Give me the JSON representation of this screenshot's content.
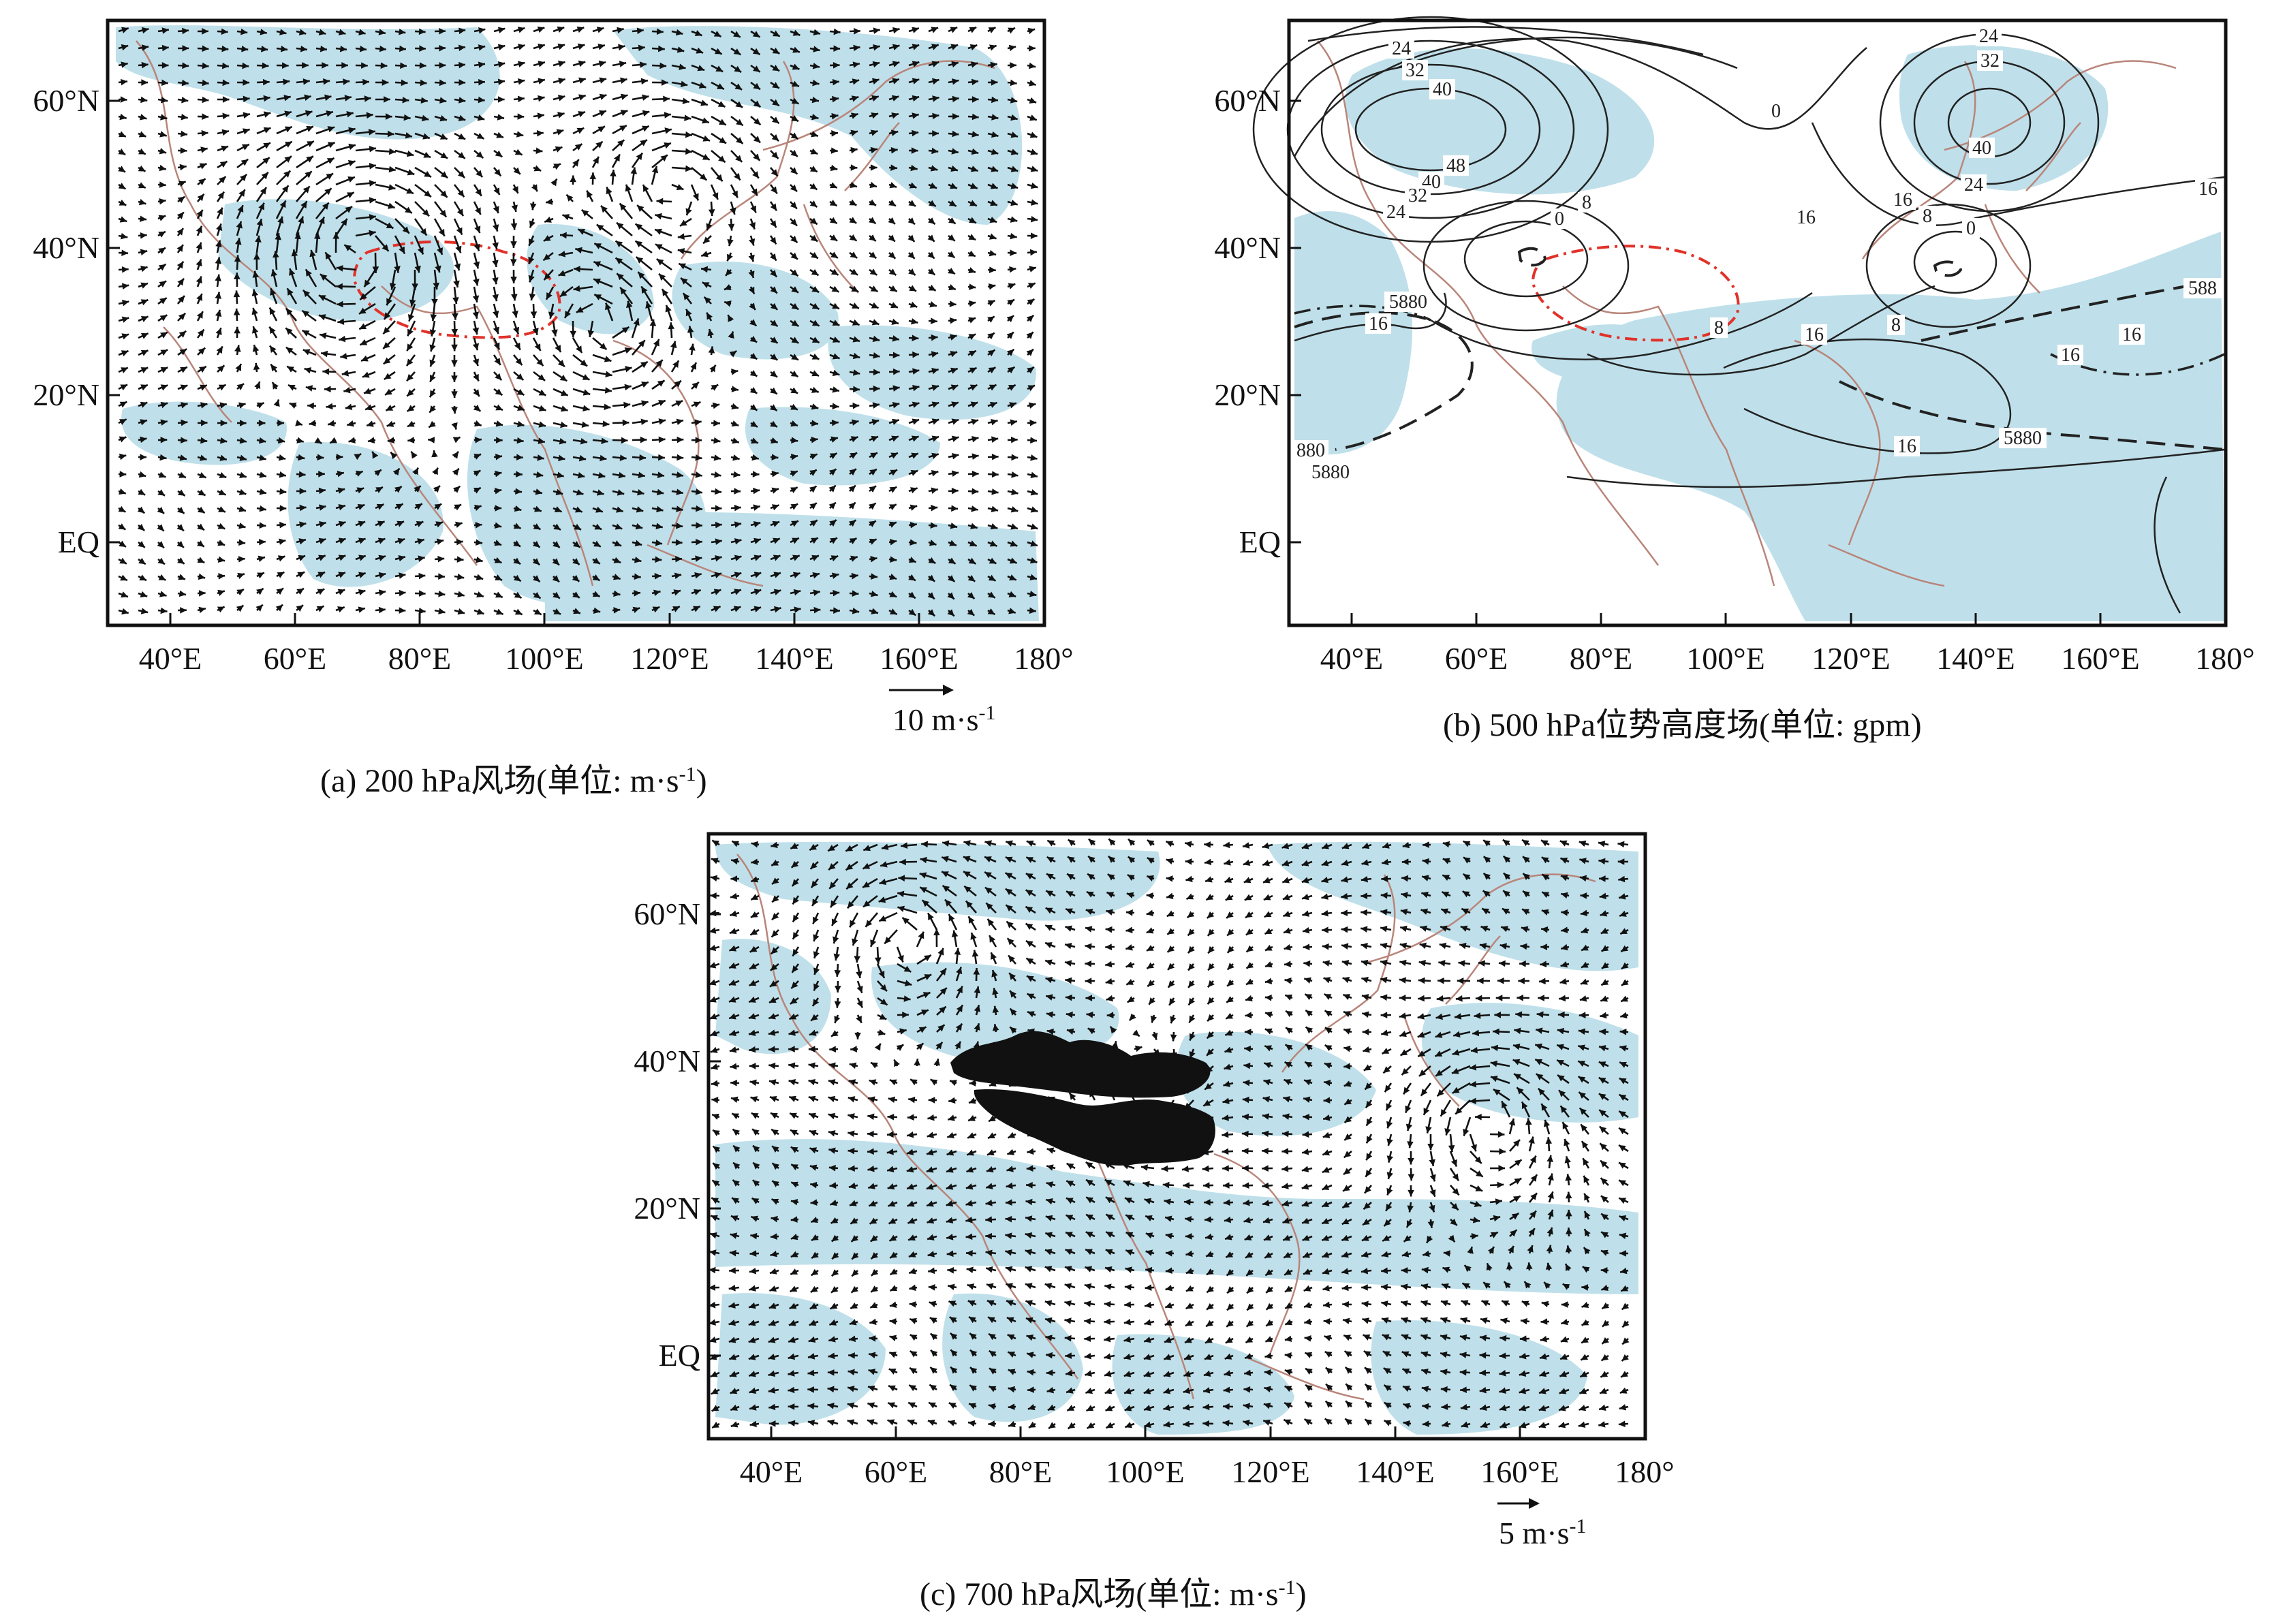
{
  "panels": [
    {
      "id": "a",
      "kind": "wind",
      "caption": "(a) 200 hPa风场(单位: m·s",
      "caption_sup": "-1",
      "caption_close": ")",
      "scale_label": "10 m·s",
      "scale_sup": "-1",
      "vortices": [
        {
          "lon": 70,
          "lat": 40,
          "dir": -1,
          "strength": 1.0,
          "radius": 20
        },
        {
          "lon": 110,
          "lat": 30,
          "dir": 1,
          "strength": 0.8,
          "radius": 15
        },
        {
          "lon": 120,
          "lat": 48,
          "dir": -1,
          "strength": 0.7,
          "radius": 18
        }
      ],
      "background_flow": {
        "u": 0.5,
        "v": 0.0
      }
    },
    {
      "id": "b",
      "kind": "contour",
      "caption": "(b) 500 hPa位势高度场(单位: gpm)",
      "contour_labels": [
        "24",
        "32",
        "40",
        "48",
        "40",
        "32",
        "24",
        "0",
        "8",
        "16",
        "5880",
        "16",
        "0",
        "8",
        "16",
        "16",
        "5880",
        "880",
        "5880",
        "24",
        "32",
        "40",
        "24",
        "16",
        "8",
        "0",
        "16",
        "8",
        "16",
        "588",
        "16"
      ]
    },
    {
      "id": "c",
      "kind": "wind",
      "caption": "(c) 700 hPa风场(单位: m·s",
      "caption_sup": "-1",
      "caption_close": ")",
      "scale_label": "5 m·s",
      "scale_sup": "-1",
      "vortices": [
        {
          "lon": 62,
          "lat": 56,
          "dir": 1,
          "strength": 0.7,
          "radius": 14
        },
        {
          "lon": 100,
          "lat": 35,
          "dir": -1,
          "strength": 0.5,
          "radius": 12
        },
        {
          "lon": 155,
          "lat": 32,
          "dir": 1,
          "strength": 0.7,
          "radius": 15
        }
      ],
      "background_flow": {
        "u": -0.5,
        "v": 0.0
      }
    }
  ],
  "axes": {
    "x_ticks": [
      "40°E",
      "60°E",
      "80°E",
      "100°E",
      "120°E",
      "140°E",
      "160°E",
      "180°"
    ],
    "x_values": [
      40,
      60,
      80,
      100,
      120,
      140,
      160,
      180
    ],
    "y_ticks": [
      "60°N",
      "40°N",
      "20°N",
      "EQ"
    ],
    "y_values": [
      60,
      40,
      20,
      0
    ],
    "lon_range": [
      30,
      180
    ],
    "lat_range": [
      -10,
      70
    ]
  },
  "colors": {
    "shading": "#bfe0ea",
    "coast": "#b9857a",
    "plateau_boundary": "#e0322a",
    "plateau_fill": "#111111",
    "frame": "#111111",
    "vector": "#111111",
    "contour": "#222222"
  }
}
